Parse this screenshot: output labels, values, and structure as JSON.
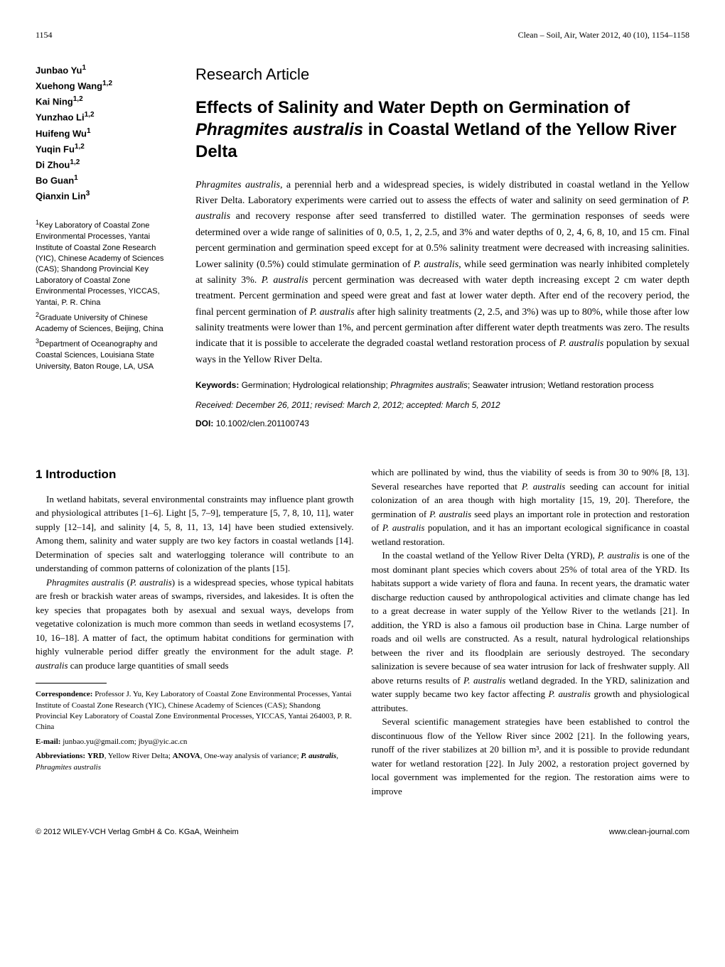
{
  "header": {
    "page_number": "1154",
    "journal_info": "Clean – Soil, Air, Water 2012, 40 (10), 1154–1158"
  },
  "authors": [
    {
      "name": "Junbao Yu",
      "affil": "1"
    },
    {
      "name": "Xuehong Wang",
      "affil": "1,2"
    },
    {
      "name": "Kai Ning",
      "affil": "1,2"
    },
    {
      "name": "Yunzhao Li",
      "affil": "1,2"
    },
    {
      "name": "Huifeng Wu",
      "affil": "1"
    },
    {
      "name": "Yuqin Fu",
      "affil": "1,2"
    },
    {
      "name": "Di Zhou",
      "affil": "1,2"
    },
    {
      "name": "Bo Guan",
      "affil": "1"
    },
    {
      "name": "Qianxin Lin",
      "affil": "3"
    }
  ],
  "affiliations": [
    {
      "num": "1",
      "text": "Key Laboratory of Coastal Zone Environmental Processes, Yantai Institute of Coastal Zone Research (YIC), Chinese Academy of Sciences (CAS); Shandong Provincial Key Laboratory of Coastal Zone Environmental Processes, YICCAS, Yantai, P. R. China"
    },
    {
      "num": "2",
      "text": "Graduate University of Chinese Academy of Sciences, Beijing, China"
    },
    {
      "num": "3",
      "text": "Department of Oceanography and Coastal Sciences, Louisiana State University, Baton Rouge, LA, USA"
    }
  ],
  "article_type": "Research Article",
  "title": "Effects of Salinity and Water Depth on Germination of Phragmites australis in Coastal Wetland of the Yellow River Delta",
  "abstract": "Phragmites australis, a perennial herb and a widespread species, is widely distributed in coastal wetland in the Yellow River Delta. Laboratory experiments were carried out to assess the effects of water and salinity on seed germination of P. australis and recovery response after seed transferred to distilled water. The germination responses of seeds were determined over a wide range of salinities of 0, 0.5, 1, 2, 2.5, and 3% and water depths of 0, 2, 4, 6, 8, 10, and 15 cm. Final percent germination and germination speed except for at 0.5% salinity treatment were decreased with increasing salinities. Lower salinity (0.5%) could stimulate germination of P. australis, while seed germination was nearly inhibited completely at salinity 3%. P. australis percent germination was decreased with water depth increasing except 2 cm water depth treatment. Percent germination and speed were great and fast at lower water depth. After end of the recovery period, the final percent germination of P. australis after high salinity treatments (2, 2.5, and 3%) was up to 80%, while those after low salinity treatments were lower than 1%, and percent germination after different water depth treatments was zero. The results indicate that it is possible to accelerate the degraded coastal wetland restoration process of P. australis population by sexual ways in the Yellow River Delta.",
  "keywords_label": "Keywords:",
  "keywords": "Germination; Hydrological relationship; Phragmites australis; Seawater intrusion; Wetland restoration process",
  "dates": "Received: December 26, 2011; revised: March 2, 2012; accepted: March 5, 2012",
  "doi_label": "DOI:",
  "doi": "10.1002/clen.201100743",
  "section1_heading": "1 Introduction",
  "body_left": {
    "p1": "In wetland habitats, several environmental constraints may influence plant growth and physiological attributes [1–6]. Light [5, 7–9], temperature [5, 7, 8, 10, 11], water supply [12–14], and salinity [4, 5, 8, 11, 13, 14] have been studied extensively. Among them, salinity and water supply are two key factors in coastal wetlands [14]. Determination of species salt and waterlogging tolerance will contribute to an understanding of common patterns of colonization of the plants [15].",
    "p2": "Phragmites australis (P. australis) is a widespread species, whose typical habitats are fresh or brackish water areas of swamps, riversides, and lakesides. It is often the key species that propagates both by asexual and sexual ways, develops from vegetative colonization is much more common than seeds in wetland ecosystems [7, 10, 16–18]. A matter of fact, the optimum habitat conditions for germination with highly vulnerable period differ greatly the environment for the adult stage. P. australis can produce large quantities of small seeds"
  },
  "body_right": {
    "p1": "which are pollinated by wind, thus the viability of seeds is from 30 to 90% [8, 13]. Several researches have reported that P. australis seeding can account for initial colonization of an area though with high mortality [15, 19, 20]. Therefore, the germination of P. australis seed plays an important role in protection and restoration of P. australis population, and it has an important ecological significance in coastal wetland restoration.",
    "p2": "In the coastal wetland of the Yellow River Delta (YRD), P. australis is one of the most dominant plant species which covers about 25% of total area of the YRD. Its habitats support a wide variety of flora and fauna. In recent years, the dramatic water discharge reduction caused by anthropological activities and climate change has led to a great decrease in water supply of the Yellow River to the wetlands [21]. In addition, the YRD is also a famous oil production base in China. Large number of roads and oil wells are constructed. As a result, natural hydrological relationships between the river and its floodplain are seriously destroyed. The secondary salinization is severe because of sea water intrusion for lack of freshwater supply. All above returns results of P. australis wetland degraded. In the YRD, salinization and water supply became two key factor affecting P. australis growth and physiological attributes.",
    "p3": "Several scientific management strategies have been established to control the discontinuous flow of the Yellow River since 2002 [21]. In the following years, runoff of the river stabilizes at 20 billion m³, and it is possible to provide redundant water for wetland restoration [22]. In July 2002, a restoration project governed by local government was implemented for the region. The restoration aims were to improve"
  },
  "footnotes": {
    "correspondence_label": "Correspondence:",
    "correspondence": "Professor J. Yu, Key Laboratory of Coastal Zone Environmental Processes, Yantai Institute of Coastal Zone Research (YIC), Chinese Academy of Sciences (CAS); Shandong Provincial Key Laboratory of Coastal Zone Environmental Processes, YICCAS, Yantai 264003, P. R. China",
    "email_label": "E-mail:",
    "email": "junbao.yu@gmail.com; jbyu@yic.ac.cn",
    "abbrev_label": "Abbreviations:",
    "abbrev": "YRD, Yellow River Delta; ANOVA, One-way analysis of variance; P. australis, Phragmites australis"
  },
  "footer": {
    "copyright": "© 2012 WILEY-VCH Verlag GmbH & Co. KGaA, Weinheim",
    "url": "www.clean-journal.com"
  }
}
